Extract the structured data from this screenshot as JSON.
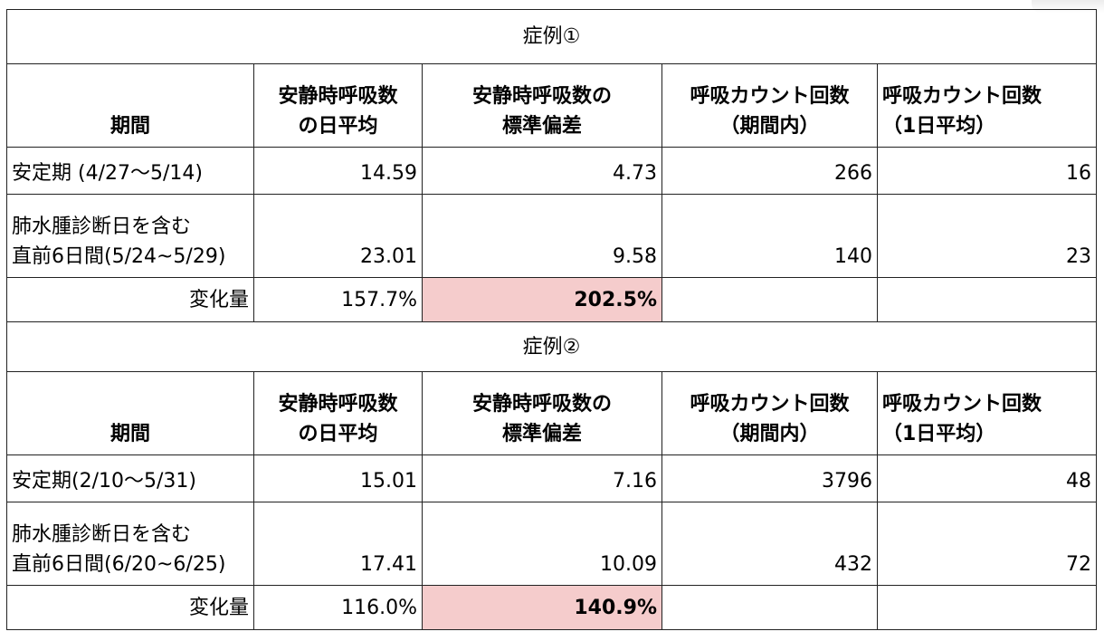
{
  "cases": [
    {
      "title": "症例①",
      "headers": [
        "期間",
        "安静時呼吸数\nの日平均",
        "安静時呼吸数の\n標準偏差",
        "呼吸カウント回数\n（期間内）",
        "呼吸カウント回数\n（1日平均）"
      ],
      "rows": [
        {
          "label": "安定期 (4/27〜5/14)",
          "values": [
            "14.59",
            "4.73",
            "266",
            "16"
          ]
        },
        {
          "label_line1": "肺水腫診断日を含む",
          "label_line2": "直前6日間(5/24~5/29)",
          "values": [
            "23.01",
            "9.58",
            "140",
            "23"
          ]
        }
      ],
      "change": {
        "label": "変化量",
        "values": [
          "157.7%",
          "202.5%"
        ]
      }
    },
    {
      "title": "症例②",
      "headers": [
        "期間",
        "安静時呼吸数\nの日平均",
        "安静時呼吸数の\n標準偏差",
        "呼吸カウント回数\n（期間内）",
        "呼吸カウント回数\n（1日平均）"
      ],
      "rows": [
        {
          "label": "安定期(2/10〜5/31)",
          "values": [
            "15.01",
            "7.16",
            "3796",
            "48"
          ]
        },
        {
          "label_line1": "肺水腫診断日を含む",
          "label_line2": "直前6日間(6/20~6/25)",
          "values": [
            "17.41",
            "10.09",
            "432",
            "72"
          ]
        }
      ],
      "change": {
        "label": "変化量",
        "values": [
          "116.0%",
          "140.9%"
        ]
      }
    }
  ],
  "colors": {
    "highlight": "#f5cccc",
    "border": "#222222"
  }
}
